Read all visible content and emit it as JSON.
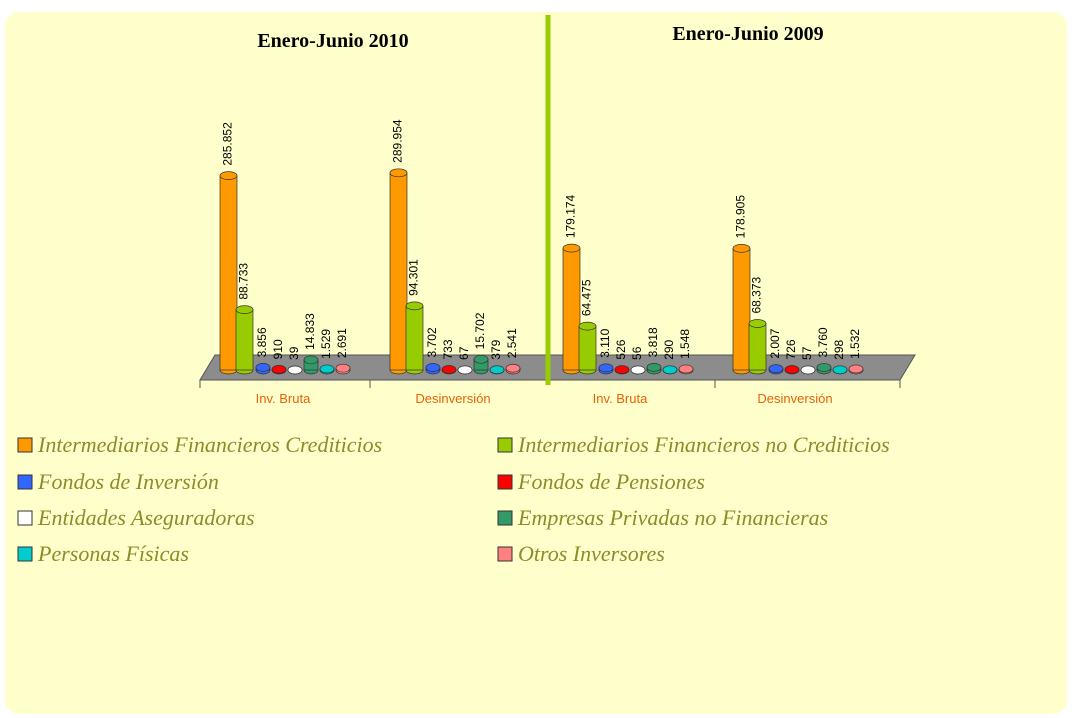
{
  "chart_data": [
    {
      "type": "bar",
      "title": "Enero-Junio 2010",
      "categories": [
        "Inv. Bruta",
        "Desinversión"
      ],
      "series": [
        {
          "name": "Intermediarios Financieros Crediticios",
          "color": "#ff9900",
          "values": [
            285852,
            289954
          ],
          "value_labels": [
            "285.852",
            "289.954"
          ]
        },
        {
          "name": "Intermediarios Financieros no Crediticios",
          "color": "#99cc00",
          "values": [
            88733,
            94301
          ],
          "value_labels": [
            "88.733",
            "94.301"
          ]
        },
        {
          "name": "Fondos de Inversión",
          "color": "#3366ff",
          "values": [
            3856,
            3702
          ],
          "value_labels": [
            "3.856",
            "3.702"
          ]
        },
        {
          "name": "Fondos de Pensiones",
          "color": "#ff0000",
          "values": [
            910,
            733
          ],
          "value_labels": [
            "910",
            "733"
          ]
        },
        {
          "name": "Entidades Aseguradoras",
          "color": "#ffffff",
          "values": [
            39,
            67
          ],
          "value_labels": [
            "39",
            "67"
          ]
        },
        {
          "name": "Empresas Privadas no Financieras",
          "color": "#339966",
          "values": [
            14833,
            15702
          ],
          "value_labels": [
            "14.833",
            "15.702"
          ]
        },
        {
          "name": "Personas Físicas",
          "color": "#00cccc",
          "values": [
            1529,
            379
          ],
          "value_labels": [
            "1.529",
            "379"
          ]
        },
        {
          "name": "Otros Inversores",
          "color": "#ff8080",
          "values": [
            2691,
            2541
          ],
          "value_labels": [
            "2.691",
            "2.541"
          ]
        }
      ]
    },
    {
      "type": "bar",
      "title": "Enero-Junio 2009",
      "categories": [
        "Inv. Bruta",
        "Desinversión"
      ],
      "series": [
        {
          "color": "#ff9900",
          "values": [
            179174,
            178905
          ],
          "value_labels": [
            "179.174",
            "178.905"
          ]
        },
        {
          "color": "#99cc00",
          "values": [
            64475,
            68373
          ],
          "value_labels": [
            "64.475",
            "68.373"
          ]
        },
        {
          "color": "#3366ff",
          "values": [
            3110,
            2007
          ],
          "value_labels": [
            "3.110",
            "2.007"
          ]
        },
        {
          "color": "#ff0000",
          "values": [
            526,
            726
          ],
          "value_labels": [
            "526",
            "726"
          ]
        },
        {
          "color": "#ffffff",
          "values": [
            56,
            57
          ],
          "value_labels": [
            "56",
            "57"
          ]
        },
        {
          "color": "#339966",
          "values": [
            3818,
            3760
          ],
          "value_labels": [
            "3.818",
            "3.760"
          ]
        },
        {
          "color": "#00cccc",
          "values": [
            290,
            298
          ],
          "value_labels": [
            "290",
            "298"
          ]
        },
        {
          "color": "#ff8080",
          "values": [
            1548,
            1532
          ],
          "value_labels": [
            "1.548",
            "1.532"
          ]
        }
      ]
    }
  ]
}
